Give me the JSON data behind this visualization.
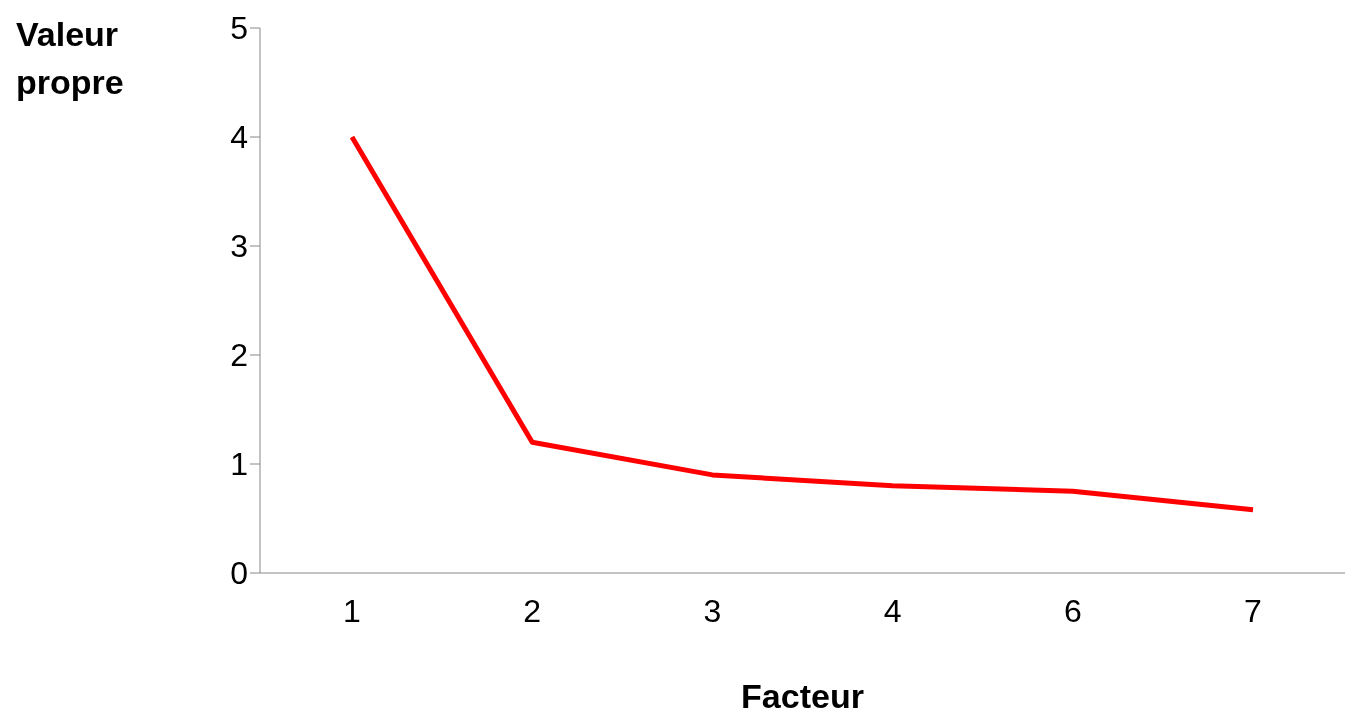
{
  "chart_data": {
    "type": "line",
    "xlabel": "Facteur",
    "ylabel": "Valeur propre",
    "categories": [
      "1",
      "2",
      "3",
      "4",
      "6",
      "7"
    ],
    "values": [
      4.0,
      1.2,
      0.9,
      0.8,
      0.75,
      0.58
    ],
    "color": "#ff0000",
    "ylim": [
      0,
      5
    ],
    "yticks": [
      0,
      1,
      2,
      3,
      4,
      5
    ],
    "grid": false,
    "legend": false
  }
}
